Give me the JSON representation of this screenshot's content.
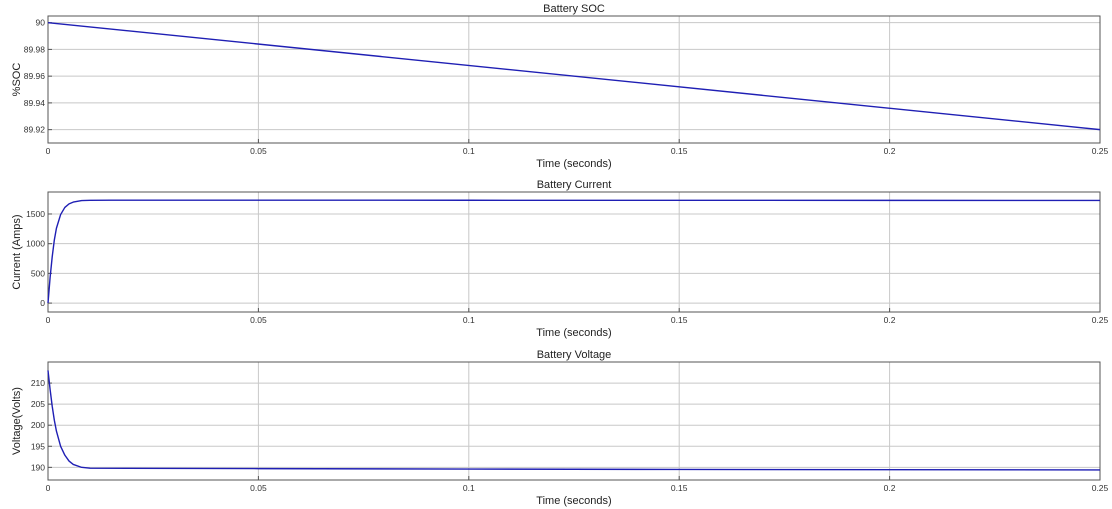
{
  "chart_data": [
    {
      "type": "line",
      "title": "Battery SOC",
      "xlabel": "Time (seconds)",
      "ylabel": "%SOC",
      "xlim": [
        0,
        0.25
      ],
      "ylim": [
        89.91,
        90.005
      ],
      "xticks": [
        0,
        0.05,
        0.1,
        0.15,
        0.2,
        0.25
      ],
      "xtick_labels": [
        "0",
        "0.05",
        "0.1",
        "0.15",
        "0.2",
        "0.25"
      ],
      "yticks": [
        89.92,
        89.94,
        89.96,
        89.98,
        90
      ],
      "ytick_labels": [
        "89.92",
        "89.94",
        "89.96",
        "89.98",
        "90"
      ],
      "grid": true,
      "color": "#1f1fb4",
      "x": [
        0,
        0.25
      ],
      "y": [
        90.0,
        89.92
      ]
    },
    {
      "type": "line",
      "title": "Battery Current",
      "xlabel": "Time (seconds)",
      "ylabel": "Current (Amps)",
      "xlim": [
        0,
        0.25
      ],
      "ylim": [
        -150,
        1870
      ],
      "xticks": [
        0,
        0.05,
        0.1,
        0.15,
        0.2,
        0.25
      ],
      "xtick_labels": [
        "0",
        "0.05",
        "0.1",
        "0.15",
        "0.2",
        "0.25"
      ],
      "yticks": [
        0,
        500,
        1000,
        1500
      ],
      "ytick_labels": [
        "0",
        "500",
        "1000",
        "1500"
      ],
      "grid": true,
      "color": "#1f1fb4",
      "x": [
        0,
        0.0005,
        0.001,
        0.0015,
        0.002,
        0.003,
        0.004,
        0.005,
        0.006,
        0.008,
        0.01,
        0.015,
        0.05,
        0.1,
        0.15,
        0.2,
        0.25
      ],
      "y": [
        0,
        430,
        780,
        1060,
        1260,
        1490,
        1610,
        1670,
        1700,
        1725,
        1730,
        1732,
        1732,
        1731,
        1730,
        1729,
        1728
      ]
    },
    {
      "type": "line",
      "title": "Battery Voltage",
      "xlabel": "Time (seconds)",
      "ylabel": "Voltage(Volts)",
      "xlim": [
        0,
        0.25
      ],
      "ylim": [
        187,
        215
      ],
      "xticks": [
        0,
        0.05,
        0.1,
        0.15,
        0.2,
        0.25
      ],
      "xtick_labels": [
        "0",
        "0.05",
        "0.1",
        "0.15",
        "0.2",
        "0.25"
      ],
      "yticks": [
        190,
        195,
        200,
        205,
        210
      ],
      "ytick_labels": [
        "190",
        "195",
        "200",
        "205",
        "210"
      ],
      "grid": true,
      "color": "#1f1fb4",
      "x": [
        0,
        0.0005,
        0.001,
        0.0015,
        0.002,
        0.003,
        0.004,
        0.005,
        0.006,
        0.008,
        0.01,
        0.05,
        0.1,
        0.15,
        0.2,
        0.25
      ],
      "y": [
        213,
        208.5,
        204.5,
        201.2,
        198.6,
        195.0,
        192.9,
        191.5,
        190.7,
        190.0,
        189.8,
        189.7,
        189.6,
        189.5,
        189.45,
        189.4
      ]
    }
  ]
}
